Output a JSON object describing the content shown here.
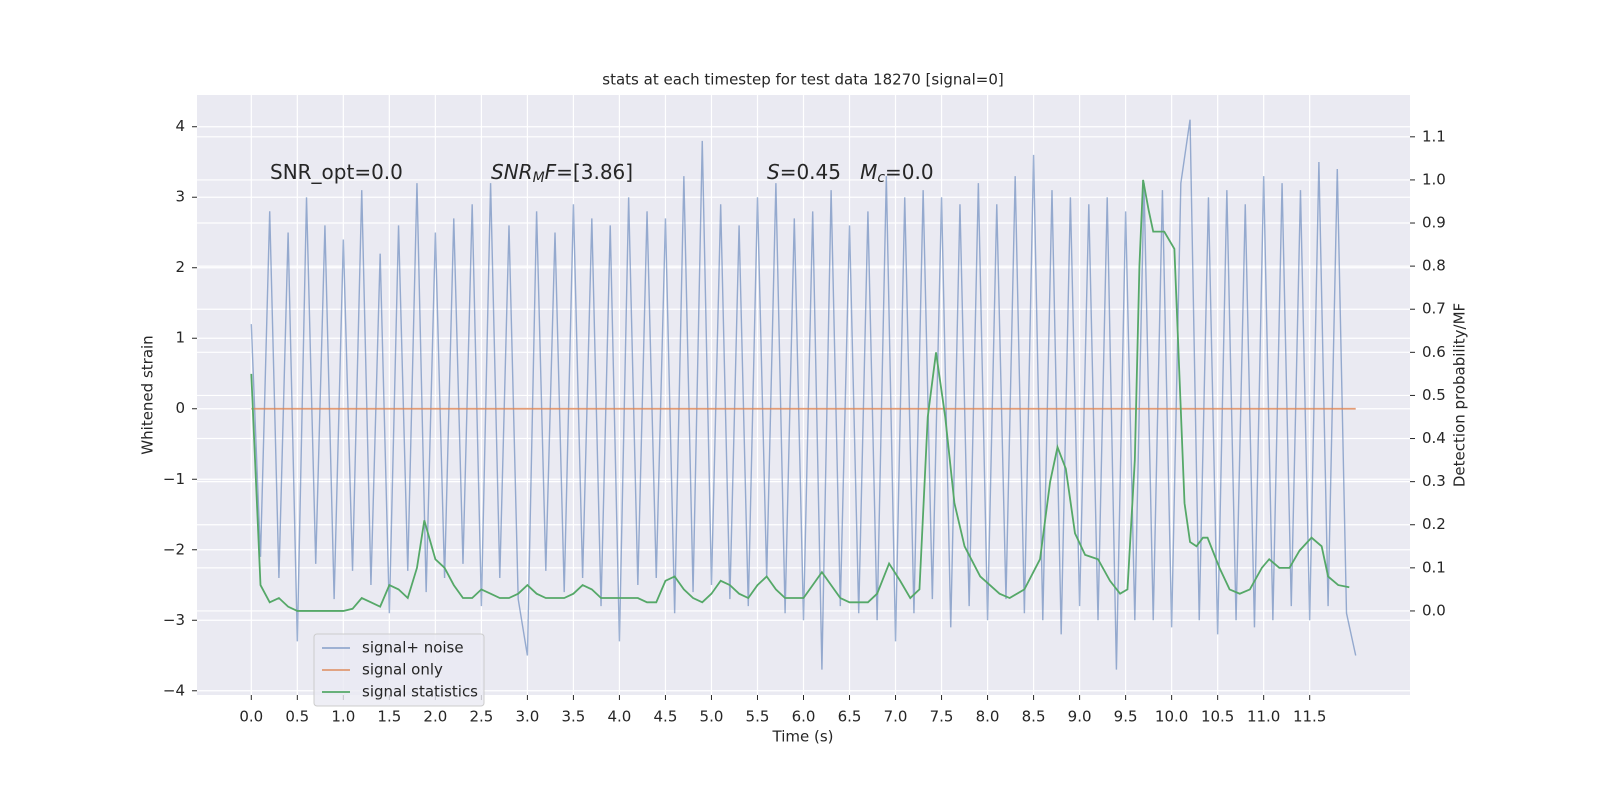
{
  "chart_data": {
    "type": "line",
    "title": "stats at each timestep for test data 18270 [signal=0]",
    "xlabel": "Time (s)",
    "ylabel": "Whitened strain",
    "y2label": "Detection probability/MF",
    "xlim": [
      -0.59,
      12.59
    ],
    "ylim": [
      -4.06,
      4.45
    ],
    "y2lim": [
      -0.195,
      1.197
    ],
    "xticks": [
      {
        "value": 0,
        "label": "0.0"
      },
      {
        "value": 0.5,
        "label": "0.5"
      },
      {
        "value": 1,
        "label": "1.0"
      },
      {
        "value": 1.5,
        "label": "1.5"
      },
      {
        "value": 2,
        "label": "2.0"
      },
      {
        "value": 2.5,
        "label": "2.5"
      },
      {
        "value": 3,
        "label": "3.0"
      },
      {
        "value": 3.5,
        "label": "3.5"
      },
      {
        "value": 4,
        "label": "4.0"
      },
      {
        "value": 4.5,
        "label": "4.5"
      },
      {
        "value": 5,
        "label": "5.0"
      },
      {
        "value": 5.5,
        "label": "5.5"
      },
      {
        "value": 6,
        "label": "6.0"
      },
      {
        "value": 6.5,
        "label": "6.5"
      },
      {
        "value": 7,
        "label": "7.0"
      },
      {
        "value": 7.5,
        "label": "7.5"
      },
      {
        "value": 8,
        "label": "8.0"
      },
      {
        "value": 8.5,
        "label": "8.5"
      },
      {
        "value": 9,
        "label": "9.0"
      },
      {
        "value": 9.5,
        "label": "9.5"
      },
      {
        "value": 10,
        "label": "10.0"
      },
      {
        "value": 10.5,
        "label": "10.5"
      },
      {
        "value": 11,
        "label": "11.0"
      },
      {
        "value": 11.5,
        "label": "11.5"
      }
    ],
    "yticks": [
      {
        "value": -4,
        "label": "−4"
      },
      {
        "value": -3,
        "label": "−3"
      },
      {
        "value": -2,
        "label": "−2"
      },
      {
        "value": -1,
        "label": "−1"
      },
      0,
      1,
      2,
      3,
      4
    ],
    "y2ticks": [
      {
        "value": 0,
        "label": "0.0"
      },
      {
        "value": 0.1,
        "label": "0.1"
      },
      {
        "value": 0.2,
        "label": "0.2"
      },
      {
        "value": 0.3,
        "label": "0.3"
      },
      {
        "value": 0.4,
        "label": "0.4"
      },
      {
        "value": 0.5,
        "label": "0.5"
      },
      {
        "value": 0.6,
        "label": "0.6"
      },
      {
        "value": 0.7,
        "label": "0.7"
      },
      {
        "value": 0.8,
        "label": "0.8"
      },
      {
        "value": 0.9,
        "label": "0.9"
      },
      {
        "value": 1,
        "label": "1.0"
      },
      {
        "value": 1.1,
        "label": "1.1"
      }
    ],
    "grid": true,
    "legend": "lower left",
    "annotations": [
      [
        {
          "text": "SNR_opt=0.0"
        }
      ],
      [
        {
          "text": "SNR",
          "style": "italic"
        },
        {
          "text": "M",
          "style": "sub"
        },
        {
          "text": "F",
          "style": "italic"
        },
        {
          "text": "=[3.86]"
        }
      ],
      [
        {
          "text": "S",
          "style": "italic"
        },
        {
          "text": "=0.45   "
        },
        {
          "text": "M",
          "style": "italic"
        },
        {
          "text": "c",
          "style": "sub"
        },
        {
          "text": "=0.0"
        }
      ]
    ],
    "series": [
      {
        "name": "signal+ noise",
        "color": "#4c72b0",
        "x": [
          0,
          0.1,
          0.2,
          0.3,
          0.4,
          0.5,
          0.6,
          0.7,
          0.8,
          0.9,
          1,
          1.1,
          1.2,
          1.3,
          1.4,
          1.5,
          1.6,
          1.7,
          1.8,
          1.9,
          2,
          2.1,
          2.2,
          2.3,
          2.4,
          2.5,
          2.6,
          2.7,
          2.8,
          2.9,
          3,
          3.1,
          3.2,
          3.3,
          3.4,
          3.5,
          3.6,
          3.7,
          3.8,
          3.9,
          4,
          4.1,
          4.2,
          4.3,
          4.4,
          4.5,
          4.6,
          4.7,
          4.8,
          4.9,
          5,
          5.1,
          5.2,
          5.3,
          5.4,
          5.5,
          5.6,
          5.7,
          5.8,
          5.9,
          6,
          6.1,
          6.2,
          6.3,
          6.4,
          6.5,
          6.6,
          6.7,
          6.8,
          6.9,
          7,
          7.1,
          7.2,
          7.3,
          7.4,
          7.5,
          7.6,
          7.7,
          7.8,
          7.9,
          8,
          8.1,
          8.2,
          8.3,
          8.4,
          8.5,
          8.6,
          8.7,
          8.8,
          8.9,
          9,
          9.1,
          9.2,
          9.3,
          9.4,
          9.5,
          9.6,
          9.7,
          9.8,
          9.9,
          10,
          10.1,
          10.2,
          10.3,
          10.4,
          10.5,
          10.6,
          10.7,
          10.8,
          10.9,
          11,
          11.1,
          11.2,
          11.3,
          11.4,
          11.5,
          11.6,
          11.7,
          11.8,
          11.9,
          12
        ],
        "values": [
          1.2,
          -2.1,
          2.8,
          -2.4,
          2.5,
          -3.3,
          3.0,
          -2.2,
          2.6,
          -2.7,
          2.4,
          -2.3,
          3.1,
          -2.5,
          2.2,
          -2.9,
          2.6,
          -2.3,
          3.2,
          -2.6,
          2.5,
          -2.4,
          2.7,
          -2.2,
          2.9,
          -2.8,
          3.2,
          -2.4,
          2.6,
          -2.7,
          -3.5,
          2.8,
          -2.3,
          2.5,
          -2.6,
          2.9,
          -2.4,
          2.7,
          -2.8,
          2.6,
          -3.3,
          3.0,
          -2.5,
          2.8,
          -2.4,
          2.7,
          -2.9,
          3.3,
          -2.6,
          3.8,
          -2.5,
          2.9,
          -2.7,
          2.6,
          -2.8,
          3.0,
          -2.4,
          3.2,
          -2.9,
          2.7,
          -3.0,
          2.8,
          -3.7,
          3.1,
          -2.8,
          2.6,
          -2.9,
          2.8,
          -3.0,
          3.3,
          -3.3,
          3.0,
          -2.9,
          3.1,
          -2.7,
          3.0,
          -3.1,
          2.9,
          -2.8,
          3.2,
          -3.0,
          2.9,
          -2.7,
          3.3,
          -2.9,
          3.6,
          -3.0,
          3.1,
          -3.2,
          3.0,
          -2.8,
          2.9,
          -3.0,
          3.0,
          -3.7,
          2.8,
          -3.0,
          3.2,
          -3.0,
          3.1,
          -3.1,
          3.2,
          4.1,
          -3.0,
          3.0,
          -3.2,
          3.1,
          -3.0,
          2.9,
          -3.1,
          3.3,
          -3.0,
          3.2,
          -2.8,
          3.1,
          -3.0,
          3.5,
          -2.8,
          3.4,
          -2.9,
          -3.5
        ]
      },
      {
        "name": "signal only",
        "color": "#dd8452",
        "x": [
          0,
          12
        ],
        "values": [
          0,
          0
        ]
      },
      {
        "name": "signal statistics",
        "color": "#55a868",
        "axis": "y2",
        "x": [
          0,
          0.1,
          0.2,
          0.3,
          0.4,
          0.5,
          0.6,
          0.7,
          0.8,
          0.9,
          1,
          1.1,
          1.2,
          1.3,
          1.4,
          1.5,
          1.6,
          1.7,
          1.8,
          1.88,
          2,
          2.1,
          2.2,
          2.3,
          2.4,
          2.5,
          2.6,
          2.7,
          2.8,
          2.9,
          3,
          3.1,
          3.2,
          3.3,
          3.4,
          3.5,
          3.6,
          3.7,
          3.8,
          3.9,
          4,
          4.1,
          4.2,
          4.3,
          4.4,
          4.5,
          4.6,
          4.7,
          4.8,
          4.9,
          5,
          5.1,
          5.2,
          5.3,
          5.4,
          5.5,
          5.6,
          5.7,
          5.8,
          5.9,
          6,
          6.1,
          6.2,
          6.3,
          6.4,
          6.5,
          6.6,
          6.7,
          6.8,
          6.93,
          7.05,
          7.16,
          7.21,
          7.26,
          7.35,
          7.44,
          7.54,
          7.64,
          7.75,
          7.92,
          8.13,
          8.24,
          8.4,
          8.57,
          8.68,
          8.76,
          8.85,
          8.95,
          9.06,
          9.2,
          9.33,
          9.44,
          9.52,
          9.6,
          9.65,
          9.69,
          9.75,
          9.8,
          9.85,
          9.92,
          10.03,
          10.14,
          10.2,
          10.27,
          10.34,
          10.39,
          10.52,
          10.63,
          10.74,
          10.85,
          10.98,
          11.06,
          11.17,
          11.28,
          11.39,
          11.52,
          11.63,
          11.7,
          11.81,
          11.93
        ],
        "values": [
          0.55,
          0.06,
          0.02,
          0.03,
          0.01,
          0.0,
          0.0,
          0.0,
          0.0,
          0.0,
          0.0,
          0.005,
          0.03,
          0.02,
          0.01,
          0.06,
          0.05,
          0.03,
          0.1,
          0.21,
          0.12,
          0.1,
          0.06,
          0.03,
          0.03,
          0.05,
          0.04,
          0.03,
          0.03,
          0.04,
          0.06,
          0.04,
          0.03,
          0.03,
          0.03,
          0.04,
          0.06,
          0.05,
          0.03,
          0.03,
          0.03,
          0.03,
          0.03,
          0.02,
          0.02,
          0.07,
          0.08,
          0.05,
          0.03,
          0.02,
          0.04,
          0.07,
          0.06,
          0.04,
          0.03,
          0.06,
          0.08,
          0.05,
          0.03,
          0.03,
          0.03,
          0.06,
          0.09,
          0.06,
          0.03,
          0.02,
          0.02,
          0.02,
          0.04,
          0.11,
          0.07,
          0.03,
          0.04,
          0.05,
          0.45,
          0.6,
          0.45,
          0.25,
          0.15,
          0.08,
          0.04,
          0.03,
          0.05,
          0.12,
          0.3,
          0.38,
          0.33,
          0.18,
          0.13,
          0.12,
          0.07,
          0.04,
          0.05,
          0.35,
          0.8,
          1.0,
          0.93,
          0.88,
          0.88,
          0.88,
          0.84,
          0.25,
          0.16,
          0.15,
          0.17,
          0.17,
          0.1,
          0.05,
          0.04,
          0.05,
          0.1,
          0.12,
          0.1,
          0.1,
          0.14,
          0.17,
          0.15,
          0.08,
          0.06,
          0.055
        ]
      }
    ]
  }
}
